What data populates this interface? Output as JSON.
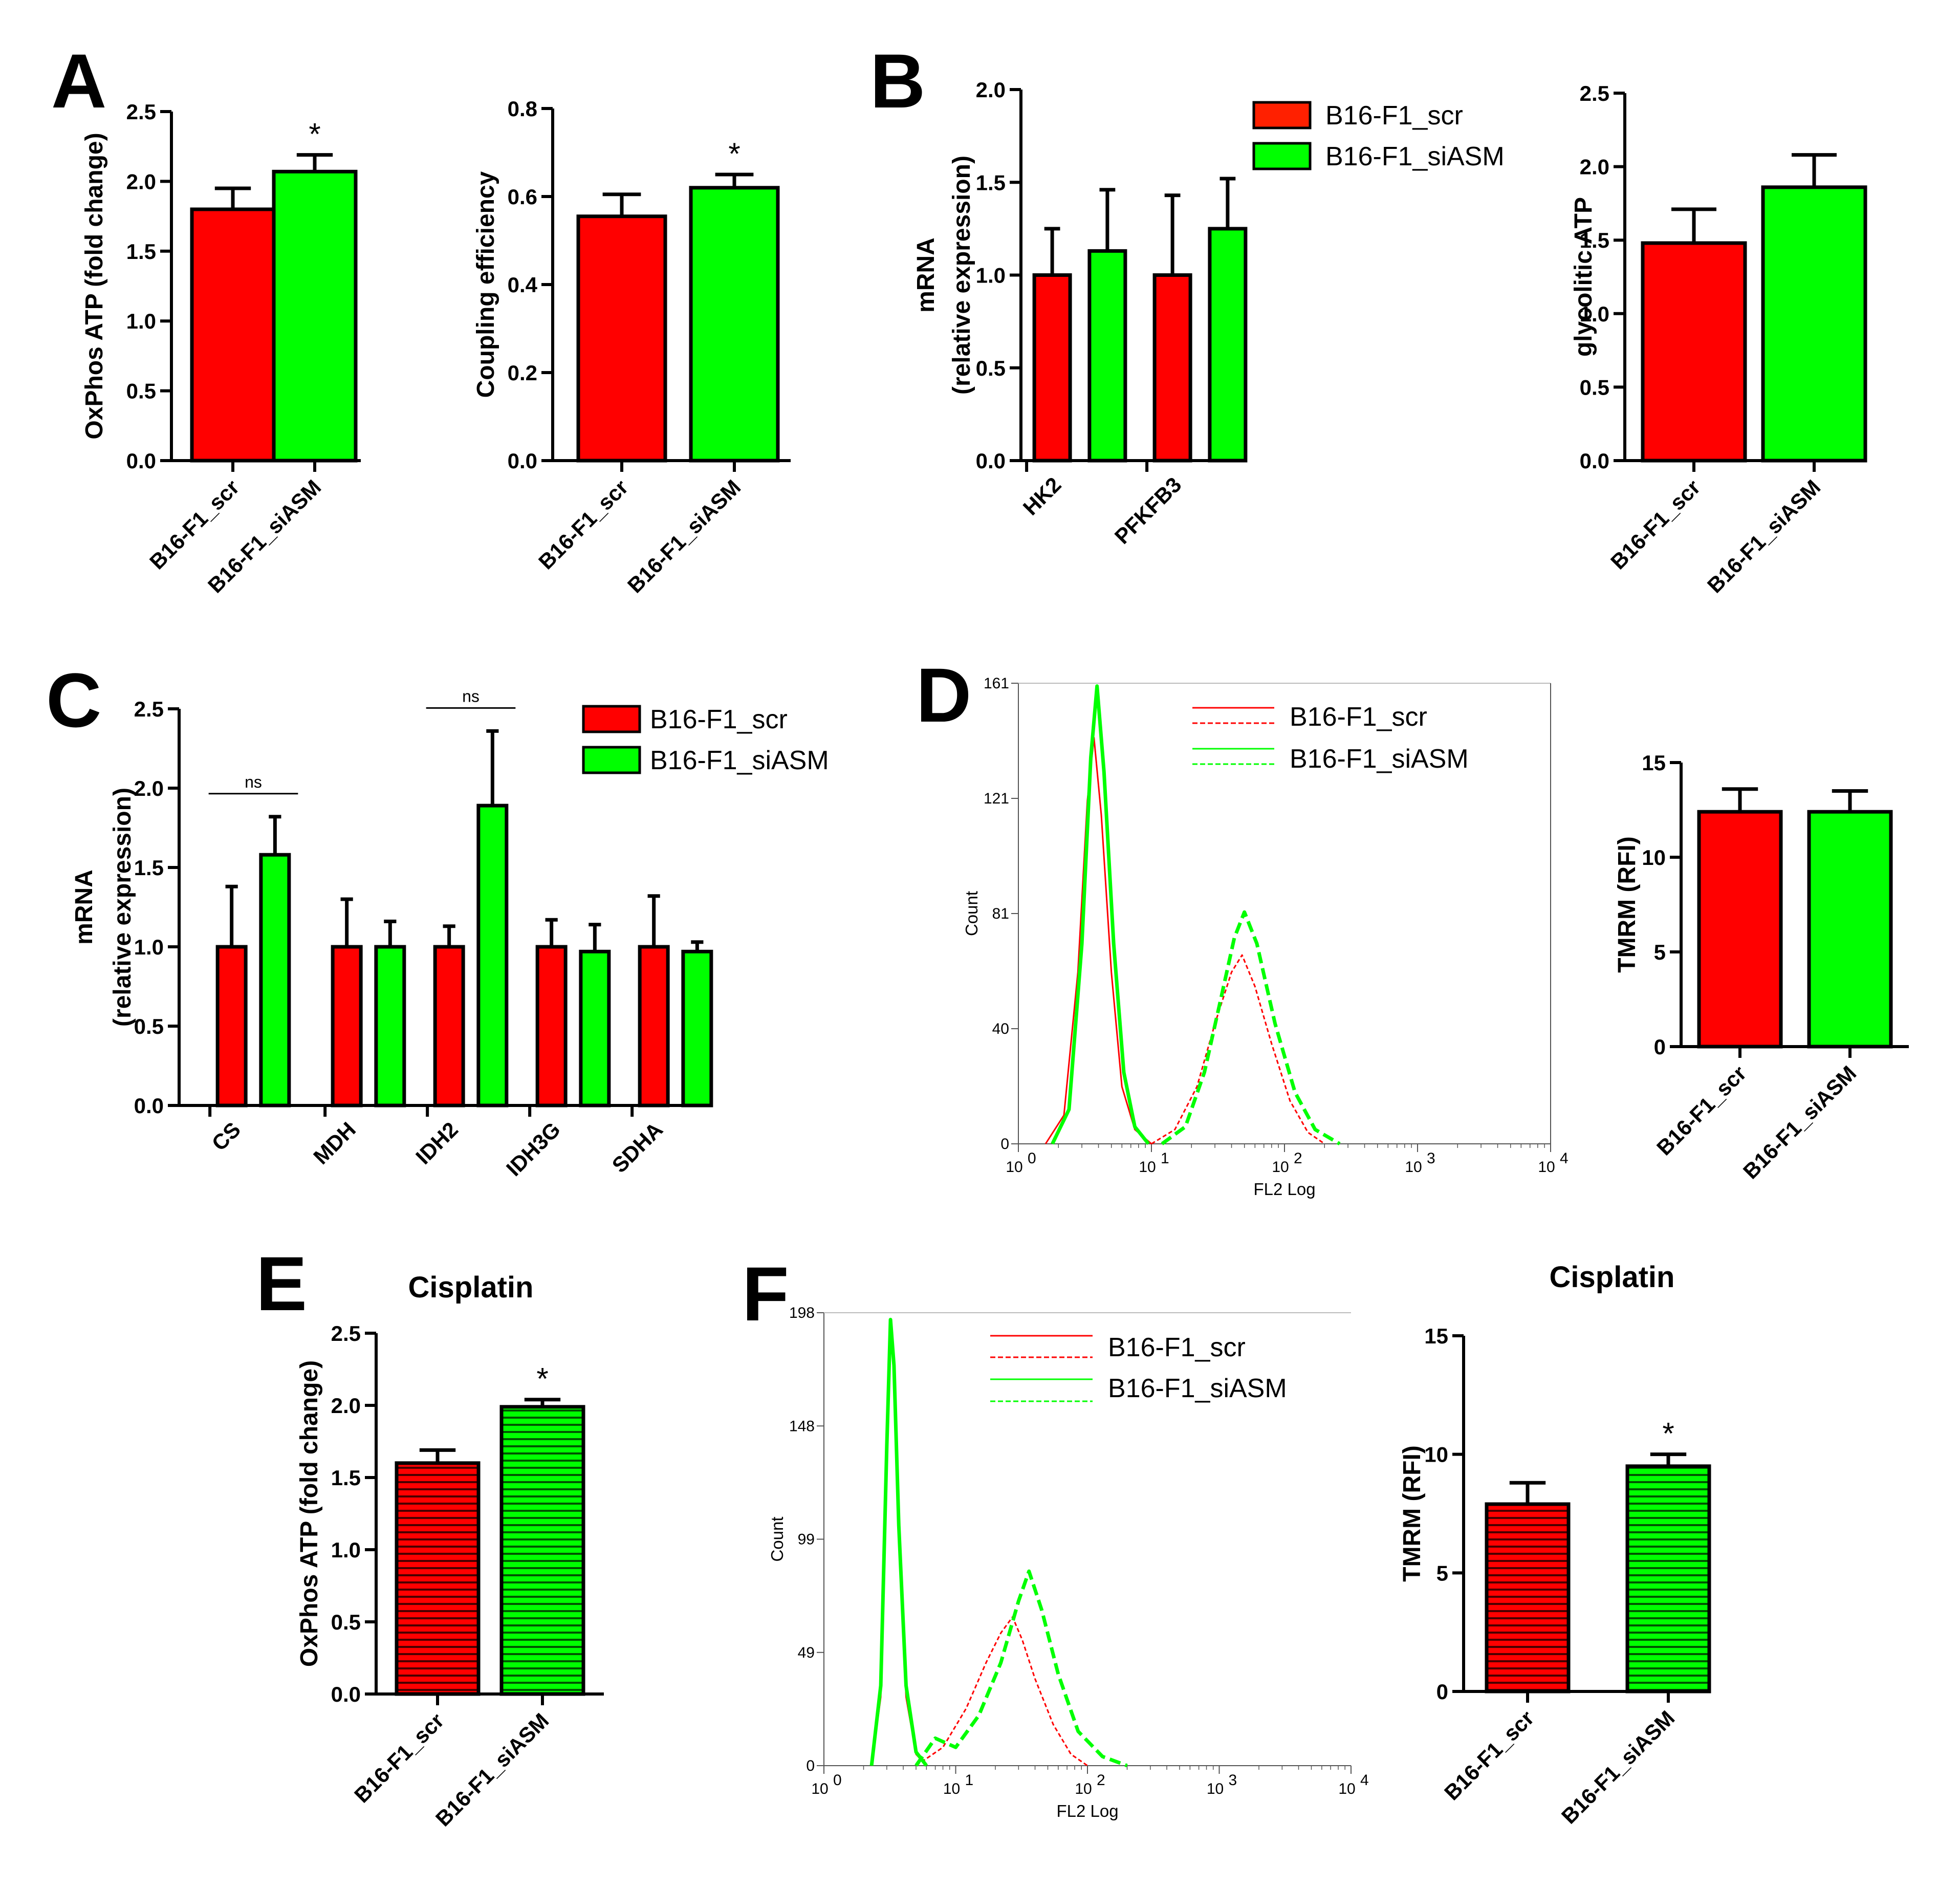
{
  "colors": {
    "scr": "#ff0000",
    "siASM": "#00ff00",
    "ink": "#000000"
  },
  "legend": {
    "scr": "B16-F1_scr",
    "siASM": "B16-F1_siASM"
  },
  "panels": {
    "A": {
      "label": "A"
    },
    "B": {
      "label": "B"
    },
    "C": {
      "label": "C"
    },
    "D": {
      "label": "D"
    },
    "E": {
      "label": "E",
      "title": "Cisplatin"
    },
    "F": {
      "label": "F",
      "title": "Cisplatin"
    }
  },
  "chart_data": [
    {
      "id": "A1",
      "type": "bar",
      "ylabel": "OxPhos ATP (fold change)",
      "ylim": [
        0,
        2.5
      ],
      "yticks": [
        "0.0",
        "0.5",
        "1.0",
        "1.5",
        "2.0",
        "2.5"
      ],
      "categories": [
        "B16-F1_scr",
        "B16-F1_siASM"
      ],
      "values": [
        1.8,
        2.07
      ],
      "errors": [
        0.15,
        0.12
      ],
      "annotations": [
        "",
        "*"
      ]
    },
    {
      "id": "A2",
      "type": "bar",
      "ylabel": "Coupling efficiency",
      "ylim": [
        0,
        0.8
      ],
      "yticks": [
        "0.0",
        "0.2",
        "0.4",
        "0.6",
        "0.8"
      ],
      "categories": [
        "B16-F1_scr",
        "B16-F1_siASM"
      ],
      "values": [
        0.555,
        0.62
      ],
      "errors": [
        0.05,
        0.03
      ],
      "annotations": [
        "",
        "*"
      ]
    },
    {
      "id": "B1",
      "type": "bar",
      "ylabel": [
        "mRNA",
        "(relative expression)"
      ],
      "ylim": [
        0,
        2.0
      ],
      "yticks": [
        "0.0",
        "0.5",
        "1.0",
        "1.5",
        "2.0"
      ],
      "categories": [
        "HK2",
        "PFKFB3"
      ],
      "series": [
        {
          "name": "B16-F1_scr",
          "values": [
            1.0,
            1.0
          ],
          "errors": [
            0.25,
            0.43
          ]
        },
        {
          "name": "B16-F1_siASM",
          "values": [
            1.13,
            1.25
          ],
          "errors": [
            0.33,
            0.27
          ]
        }
      ]
    },
    {
      "id": "B2",
      "type": "bar",
      "ylabel": "glycolitic ATP",
      "ylim": [
        0,
        2.5
      ],
      "yticks": [
        "0.0",
        "0.5",
        "1.0",
        "1.5",
        "2.0",
        "2.5"
      ],
      "categories": [
        "B16-F1_scr",
        "B16-F1_siASM"
      ],
      "values": [
        1.48,
        1.86
      ],
      "errors": [
        0.23,
        0.22
      ]
    },
    {
      "id": "C",
      "type": "bar",
      "ylabel": [
        "mRNA",
        "(relative expression)"
      ],
      "ylim": [
        0,
        2.5
      ],
      "yticks": [
        "0.0",
        "0.5",
        "1.0",
        "1.5",
        "2.0",
        "2.5"
      ],
      "categories": [
        "CS",
        "MDH",
        "IDH2",
        "IDH3G",
        "SDHA"
      ],
      "series": [
        {
          "name": "B16-F1_scr",
          "values": [
            1.0,
            1.0,
            1.0,
            1.0,
            1.0
          ],
          "errors": [
            0.38,
            0.3,
            0.13,
            0.17,
            0.32
          ]
        },
        {
          "name": "B16-F1_siASM",
          "values": [
            1.58,
            1.0,
            1.89,
            0.97,
            0.97
          ],
          "errors": [
            0.24,
            0.16,
            0.47,
            0.17,
            0.06
          ]
        }
      ],
      "annotations": [
        {
          "category": "CS",
          "text": "ns"
        },
        {
          "category": "IDH2",
          "text": "ns"
        }
      ]
    },
    {
      "id": "D1",
      "type": "line",
      "xlabel": "FL2 Log",
      "ylabel": "Count",
      "x_scale": "log",
      "xlim": [
        1,
        10000
      ],
      "ylim": [
        0,
        161
      ],
      "xticks": [
        "10",
        "10",
        "10",
        "10",
        "10"
      ],
      "xtick_exp": [
        "0",
        "1",
        "2",
        "3",
        "4"
      ],
      "yticks": [
        "0",
        "40",
        "81",
        "121",
        "161"
      ],
      "series": [
        {
          "name": "B16-F1_scr",
          "style": "solid",
          "x": [
            1.6,
            2.2,
            2.8,
            3.3,
            3.7,
            4.2,
            5.0,
            6.0,
            7.5,
            10
          ],
          "y": [
            0,
            10,
            60,
            120,
            142,
            115,
            60,
            20,
            5,
            0
          ]
        },
        {
          "name": "B16-F1_scr",
          "style": "dashed",
          "x": [
            10,
            15,
            22,
            30,
            40,
            48,
            60,
            80,
            110,
            150,
            200
          ],
          "y": [
            0,
            5,
            20,
            42,
            60,
            66,
            55,
            35,
            15,
            4,
            0
          ]
        },
        {
          "name": "B16-F1_siASM",
          "style": "solid",
          "x": [
            1.8,
            2.4,
            3.0,
            3.5,
            3.9,
            4.4,
            5.2,
            6.2,
            7.5,
            9.5
          ],
          "y": [
            0,
            12,
            70,
            135,
            160,
            130,
            70,
            25,
            6,
            0
          ]
        },
        {
          "name": "B16-F1_siASM",
          "style": "dashed",
          "x": [
            12,
            18,
            25,
            33,
            42,
            50,
            62,
            85,
            120,
            170,
            260
          ],
          "y": [
            0,
            6,
            25,
            50,
            72,
            81,
            70,
            42,
            18,
            5,
            0
          ]
        }
      ]
    },
    {
      "id": "D2",
      "type": "bar",
      "ylabel": "TMRM (RFI)",
      "ylim": [
        0,
        15
      ],
      "yticks": [
        "0",
        "5",
        "10",
        "15"
      ],
      "categories": [
        "B16-F1_scr",
        "B16-F1_siASM"
      ],
      "values": [
        12.4,
        12.4
      ],
      "errors": [
        1.2,
        1.1
      ]
    },
    {
      "id": "E",
      "type": "bar",
      "title": "Cisplatin",
      "ylabel": "OxPhos ATP (fold change)",
      "ylim": [
        0,
        2.5
      ],
      "yticks": [
        "0.0",
        "0.5",
        "1.0",
        "1.5",
        "2.0",
        "2.5"
      ],
      "categories": [
        "B16-F1_scr",
        "B16-F1_siASM"
      ],
      "values": [
        1.6,
        1.99
      ],
      "errors": [
        0.09,
        0.05
      ],
      "annotations": [
        "",
        "*"
      ]
    },
    {
      "id": "F1",
      "type": "line",
      "xlabel": "FL2 Log",
      "ylabel": "Count",
      "x_scale": "log",
      "xlim": [
        1,
        10000
      ],
      "ylim": [
        0,
        198
      ],
      "xticks": [
        "10",
        "10",
        "10",
        "10",
        "10"
      ],
      "xtick_exp": [
        "0",
        "1",
        "2",
        "3",
        "4"
      ],
      "yticks": [
        "0",
        "49",
        "99",
        "148",
        "198"
      ],
      "series": [
        {
          "name": "B16-F1_scr",
          "style": "solid",
          "x": [
            2.3,
            2.7,
            3.0,
            3.2,
            3.4,
            3.7,
            4.2,
            5.0,
            6.0
          ],
          "y": [
            0,
            30,
            130,
            190,
            170,
            100,
            30,
            5,
            0
          ]
        },
        {
          "name": "B16-F1_scr",
          "style": "dashed",
          "x": [
            5,
            8,
            12,
            17,
            22,
            27,
            32,
            40,
            55,
            75,
            100
          ],
          "y": [
            0,
            8,
            25,
            45,
            58,
            65,
            55,
            38,
            18,
            5,
            0
          ]
        },
        {
          "name": "B16-F1_siASM",
          "style": "solid",
          "x": [
            2.3,
            2.7,
            3.0,
            3.2,
            3.4,
            3.7,
            4.2,
            5.0,
            6.0
          ],
          "y": [
            0,
            35,
            140,
            195,
            175,
            105,
            35,
            6,
            0
          ]
        },
        {
          "name": "B16-F1_siASM",
          "style": "dashed",
          "x": [
            5,
            7,
            10,
            15,
            22,
            30,
            36,
            45,
            60,
            85,
            130,
            200
          ],
          "y": [
            0,
            12,
            8,
            22,
            45,
            72,
            85,
            68,
            40,
            15,
            4,
            0
          ]
        }
      ]
    },
    {
      "id": "F2",
      "type": "bar",
      "title": "Cisplatin",
      "ylabel": "TMRM (RFI)",
      "ylim": [
        0,
        15
      ],
      "yticks": [
        "0",
        "5",
        "10",
        "15"
      ],
      "categories": [
        "B16-F1_scr",
        "B16-F1_siASM"
      ],
      "values": [
        7.9,
        9.5
      ],
      "errors": [
        0.9,
        0.5
      ],
      "annotations": [
        "",
        "*"
      ]
    }
  ]
}
